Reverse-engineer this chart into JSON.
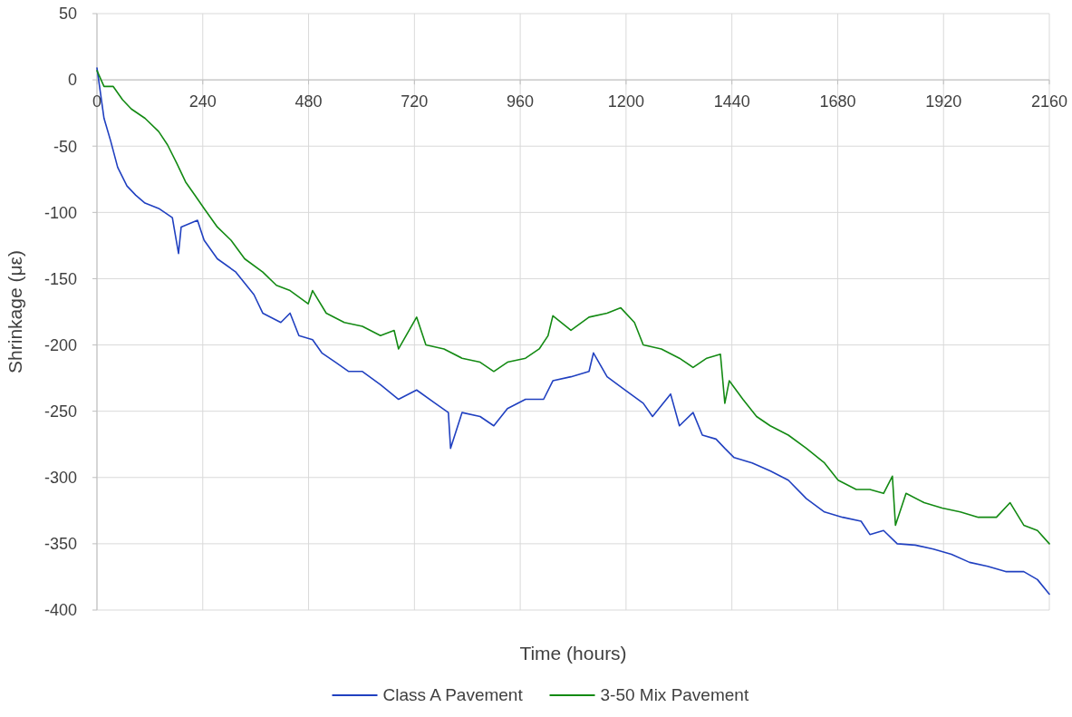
{
  "chart_data": {
    "type": "line",
    "xlabel": "Time (hours)",
    "ylabel": "Shrinkage (με)",
    "xlim": [
      0,
      2160
    ],
    "xticks": [
      0,
      240,
      480,
      720,
      960,
      1200,
      1440,
      1680,
      1920,
      2160
    ],
    "ylim": [
      -400,
      50
    ],
    "yticks": [
      -400,
      -350,
      -300,
      -250,
      -200,
      -150,
      -100,
      -50,
      0,
      50
    ],
    "grid": true,
    "legend": "bottom",
    "marker": "none",
    "line_style": "solid",
    "series": [
      {
        "name": "Class A Pavement",
        "color": "#2040c0",
        "x": [
          0,
          16,
          31,
          47,
          68,
          88,
          109,
          140,
          171,
          185,
          191,
          228,
          243,
          273,
          315,
          356,
          376,
          417,
          438,
          458,
          489,
          510,
          541,
          571,
          602,
          643,
          684,
          725,
          767,
          797,
          802,
          828,
          869,
          900,
          931,
          972,
          1013,
          1034,
          1075,
          1116,
          1126,
          1157,
          1198,
          1239,
          1260,
          1301,
          1321,
          1352,
          1373,
          1404,
          1424,
          1445,
          1486,
          1527,
          1568,
          1609,
          1650,
          1691,
          1733,
          1753,
          1784,
          1815,
          1856,
          1897,
          1938,
          1979,
          2020,
          2061,
          2102,
          2133,
          2160
        ],
        "values": [
          9,
          -29,
          -46,
          -66,
          -80,
          -87,
          -93,
          -97,
          -104,
          -131,
          -111,
          -106,
          -121,
          -135,
          -145,
          -162,
          -176,
          -183,
          -176,
          -193,
          -196,
          -206,
          -213,
          -220,
          -220,
          -230,
          -241,
          -234,
          -244,
          -251,
          -278,
          -251,
          -254,
          -261,
          -248,
          -241,
          -241,
          -227,
          -224,
          -220,
          -206,
          -224,
          -234,
          -244,
          -254,
          -237,
          -261,
          -251,
          -268,
          -271,
          -278,
          -285,
          -289,
          -295,
          -302,
          -316,
          -326,
          -330,
          -333,
          -343,
          -340,
          -350,
          -351,
          -354,
          -358,
          -364,
          -367,
          -371,
          -371,
          -377,
          -388
        ]
      },
      {
        "name": "3-50 Mix Pavement",
        "color": "#138a13",
        "x": [
          0,
          16,
          37,
          58,
          78,
          109,
          140,
          160,
          181,
          201,
          222,
          243,
          273,
          304,
          335,
          376,
          407,
          438,
          479,
          489,
          520,
          561,
          602,
          643,
          674,
          684,
          725,
          746,
          787,
          828,
          869,
          900,
          931,
          972,
          1003,
          1023,
          1034,
          1075,
          1116,
          1157,
          1188,
          1219,
          1239,
          1280,
          1321,
          1352,
          1383,
          1414,
          1424,
          1434,
          1465,
          1496,
          1527,
          1568,
          1609,
          1650,
          1681,
          1722,
          1753,
          1784,
          1804,
          1811,
          1835,
          1876,
          1917,
          1958,
          1999,
          2040,
          2071,
          2102,
          2133,
          2160
        ],
        "values": [
          7,
          -5,
          -5,
          -15,
          -22,
          -29,
          -39,
          -49,
          -63,
          -77,
          -87,
          -97,
          -111,
          -121,
          -135,
          -145,
          -155,
          -159,
          -169,
          -159,
          -176,
          -183,
          -186,
          -193,
          -189,
          -203,
          -179,
          -200,
          -203,
          -210,
          -213,
          -220,
          -213,
          -210,
          -203,
          -193,
          -178,
          -189,
          -179,
          -176,
          -172,
          -183,
          -200,
          -203,
          -210,
          -217,
          -210,
          -207,
          -244,
          -227,
          -241,
          -254,
          -261,
          -268,
          -278,
          -289,
          -302,
          -309,
          -309,
          -312,
          -299,
          -336,
          -312,
          -319,
          -323,
          -326,
          -330,
          -330,
          -319,
          -336,
          -340,
          -350
        ]
      }
    ]
  }
}
